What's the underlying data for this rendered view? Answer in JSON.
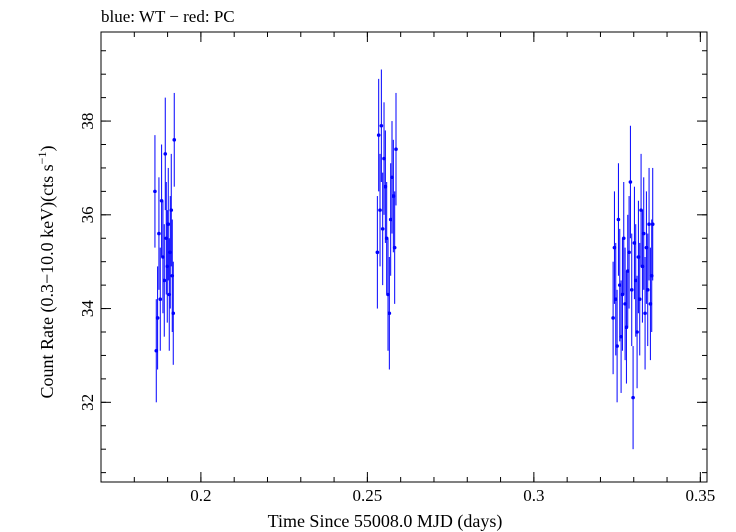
{
  "chart_data": {
    "type": "scatter",
    "title": "blue: WT − red: PC",
    "xlabel": "Time Since 55008.0 MJD (days)",
    "ylabel_parts": [
      "Count Rate (0.3−10.0 keV)(cts s",
      "−1",
      ")"
    ],
    "xlim": [
      0.17,
      0.352
    ],
    "ylim": [
      30.3,
      39.9
    ],
    "x_ticks": [
      0.2,
      0.25,
      0.3,
      0.35
    ],
    "x_tick_labels": [
      "0.2",
      "0.25",
      "0.3",
      "0.35"
    ],
    "y_ticks": [
      32,
      34,
      36,
      38
    ],
    "y_tick_labels": [
      "32",
      "34",
      "36",
      "38"
    ],
    "x_minor_step": 0.01,
    "y_minor_step": 0.5,
    "grid": false,
    "colors": {
      "wt": "#0000ff",
      "pc": "#ff0000",
      "axes": "#000000"
    },
    "series": [
      {
        "color": "#0000ff",
        "points": [
          {
            "x": 0.1862,
            "y": 36.5,
            "err": 1.2
          },
          {
            "x": 0.1866,
            "y": 33.1,
            "err": 1.1
          },
          {
            "x": 0.187,
            "y": 33.8,
            "err": 1.1
          },
          {
            "x": 0.1874,
            "y": 35.6,
            "err": 1.2
          },
          {
            "x": 0.1878,
            "y": 34.2,
            "err": 1.1
          },
          {
            "x": 0.1882,
            "y": 36.3,
            "err": 1.2
          },
          {
            "x": 0.1886,
            "y": 35.1,
            "err": 1.2
          },
          {
            "x": 0.189,
            "y": 34.6,
            "err": 1.2
          },
          {
            "x": 0.1893,
            "y": 37.3,
            "err": 1.2
          },
          {
            "x": 0.1896,
            "y": 35.5,
            "err": 1.2
          },
          {
            "x": 0.1899,
            "y": 34.9,
            "err": 1.2
          },
          {
            "x": 0.1902,
            "y": 35.8,
            "err": 1.2
          },
          {
            "x": 0.1905,
            "y": 34.3,
            "err": 1.2
          },
          {
            "x": 0.1908,
            "y": 35.2,
            "err": 1.2
          },
          {
            "x": 0.1911,
            "y": 36.1,
            "err": 1.2
          },
          {
            "x": 0.1914,
            "y": 34.7,
            "err": 1.2
          },
          {
            "x": 0.1917,
            "y": 33.9,
            "err": 1.1
          },
          {
            "x": 0.192,
            "y": 37.6,
            "err": 1.0
          },
          {
            "x": 0.253,
            "y": 35.2,
            "err": 1.2
          },
          {
            "x": 0.2534,
            "y": 37.7,
            "err": 1.2
          },
          {
            "x": 0.2538,
            "y": 36.1,
            "err": 1.2
          },
          {
            "x": 0.2542,
            "y": 37.9,
            "err": 1.2
          },
          {
            "x": 0.2546,
            "y": 35.7,
            "err": 1.2
          },
          {
            "x": 0.255,
            "y": 37.2,
            "err": 1.2
          },
          {
            "x": 0.2554,
            "y": 36.6,
            "err": 1.2
          },
          {
            "x": 0.2558,
            "y": 35.5,
            "err": 1.2
          },
          {
            "x": 0.2562,
            "y": 34.3,
            "err": 1.2
          },
          {
            "x": 0.2566,
            "y": 33.9,
            "err": 1.2
          },
          {
            "x": 0.257,
            "y": 35.9,
            "err": 1.2
          },
          {
            "x": 0.2574,
            "y": 36.8,
            "err": 1.2
          },
          {
            "x": 0.2578,
            "y": 36.4,
            "err": 1.2
          },
          {
            "x": 0.2582,
            "y": 35.3,
            "err": 1.2
          },
          {
            "x": 0.2586,
            "y": 37.4,
            "err": 1.2
          },
          {
            "x": 0.3238,
            "y": 33.8,
            "err": 1.2
          },
          {
            "x": 0.3242,
            "y": 35.3,
            "err": 1.2
          },
          {
            "x": 0.3246,
            "y": 34.2,
            "err": 1.2
          },
          {
            "x": 0.325,
            "y": 33.2,
            "err": 1.2
          },
          {
            "x": 0.3254,
            "y": 35.9,
            "err": 1.2
          },
          {
            "x": 0.3258,
            "y": 34.5,
            "err": 1.2
          },
          {
            "x": 0.3262,
            "y": 33.4,
            "err": 1.2
          },
          {
            "x": 0.3266,
            "y": 34.3,
            "err": 1.2
          },
          {
            "x": 0.327,
            "y": 35.5,
            "err": 1.2
          },
          {
            "x": 0.3274,
            "y": 34.1,
            "err": 1.2
          },
          {
            "x": 0.3278,
            "y": 33.6,
            "err": 1.2
          },
          {
            "x": 0.3282,
            "y": 34.8,
            "err": 1.2
          },
          {
            "x": 0.3286,
            "y": 35.2,
            "err": 1.2
          },
          {
            "x": 0.329,
            "y": 36.7,
            "err": 1.2
          },
          {
            "x": 0.3294,
            "y": 34.4,
            "err": 1.2
          },
          {
            "x": 0.3298,
            "y": 32.1,
            "err": 1.1
          },
          {
            "x": 0.3302,
            "y": 35.4,
            "err": 1.2
          },
          {
            "x": 0.3306,
            "y": 34.6,
            "err": 1.2
          },
          {
            "x": 0.331,
            "y": 33.5,
            "err": 1.2
          },
          {
            "x": 0.3314,
            "y": 35.1,
            "err": 1.2
          },
          {
            "x": 0.3318,
            "y": 34.2,
            "err": 1.2
          },
          {
            "x": 0.3322,
            "y": 36.1,
            "err": 1.2
          },
          {
            "x": 0.3326,
            "y": 34.9,
            "err": 1.2
          },
          {
            "x": 0.333,
            "y": 35.6,
            "err": 1.2
          },
          {
            "x": 0.3334,
            "y": 33.9,
            "err": 1.2
          },
          {
            "x": 0.3338,
            "y": 35.3,
            "err": 1.2
          },
          {
            "x": 0.3342,
            "y": 34.4,
            "err": 1.2
          },
          {
            "x": 0.3346,
            "y": 35.8,
            "err": 1.2
          },
          {
            "x": 0.335,
            "y": 34.1,
            "err": 1.2
          },
          {
            "x": 0.3354,
            "y": 34.7,
            "err": 1.2
          },
          {
            "x": 0.3357,
            "y": 35.8,
            "err": 1.2
          }
        ]
      }
    ]
  }
}
